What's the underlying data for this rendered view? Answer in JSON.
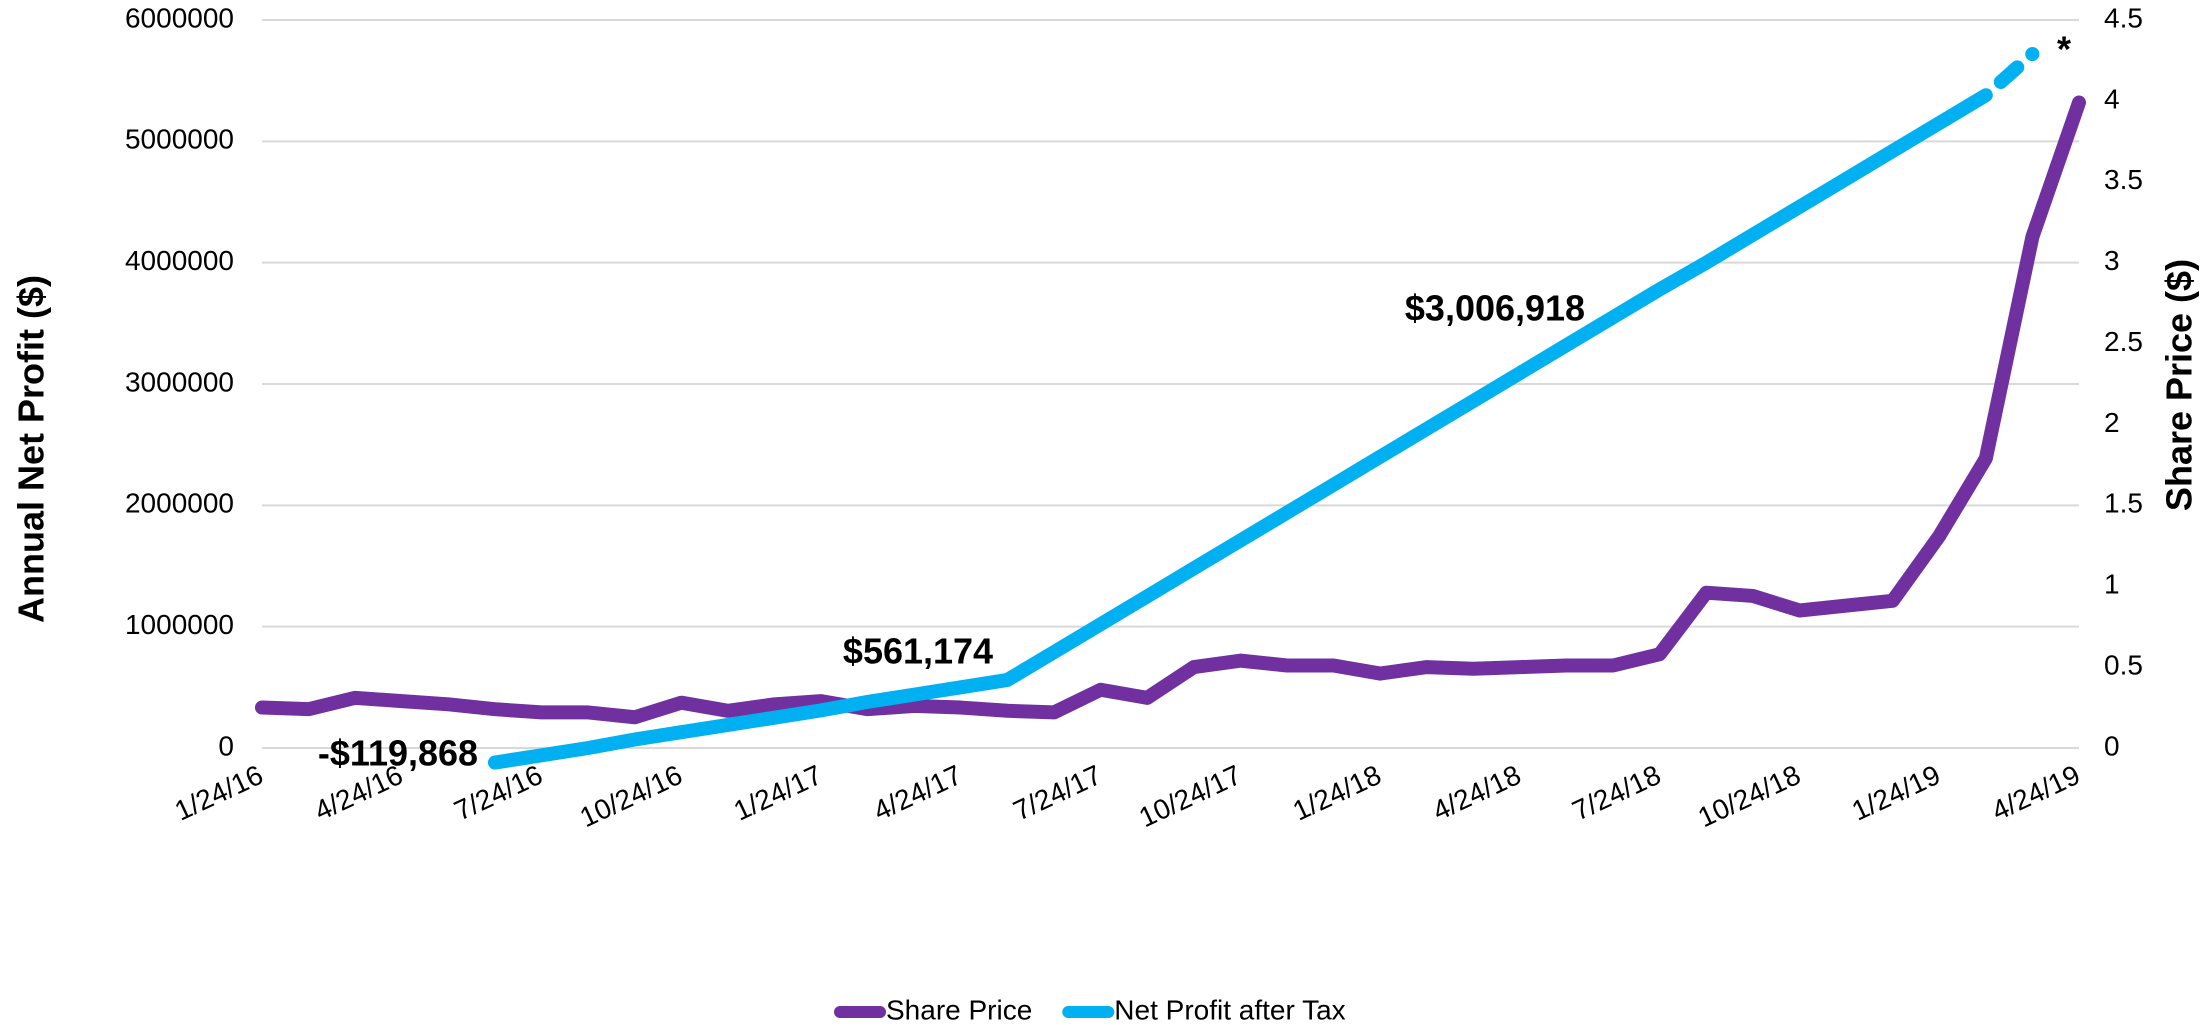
{
  "chart_data": {
    "type": "line",
    "y_axis_label": "Annual Net Profit ($)",
    "y2_axis_label": "Share Price ($)",
    "categories": [
      "1/24/16",
      null,
      null,
      "4/24/16",
      null,
      null,
      "7/24/16",
      null,
      null,
      "10/24/16",
      null,
      null,
      "1/24/17",
      null,
      null,
      "4/24/17",
      null,
      null,
      "7/24/17",
      null,
      null,
      "10/24/17",
      null,
      null,
      "1/24/18",
      null,
      null,
      "4/24/18",
      null,
      null,
      "7/24/18",
      null,
      null,
      "10/24/18",
      null,
      null,
      "1/24/19",
      null,
      null,
      "4/24/19"
    ],
    "ylim": [
      0,
      6000000
    ],
    "yticks": [
      0,
      1000000,
      2000000,
      3000000,
      4000000,
      5000000,
      6000000
    ],
    "y2lim": [
      0,
      4.5
    ],
    "y2ticks": [
      0,
      0.5,
      1,
      1.5,
      2,
      2.5,
      3,
      3.5,
      4,
      4.5
    ],
    "grid": true,
    "legend": "bottom",
    "series": [
      {
        "name": "Share Price",
        "color": "#7030a0",
        "axis": "y2",
        "values": [
          0.25,
          0.24,
          0.31,
          0.29,
          0.27,
          0.24,
          0.22,
          0.22,
          0.19,
          0.28,
          0.23,
          0.27,
          0.29,
          0.24,
          0.26,
          0.25,
          0.23,
          0.22,
          0.36,
          0.31,
          0.5,
          0.54,
          0.51,
          0.51,
          0.46,
          0.5,
          0.49,
          0.5,
          0.51,
          0.51,
          0.58,
          0.96,
          0.94,
          0.85,
          0.88,
          0.91,
          1.31,
          1.79,
          3.16,
          3.99
        ]
      },
      {
        "name": "Net Profit after Tax",
        "color": "#00b0f0",
        "dashed_last_segment": true,
        "values": [
          null,
          null,
          null,
          null,
          null,
          -119868,
          -60000,
          0,
          70000,
          130000,
          190000,
          250000,
          310000,
          380000,
          440000,
          500000,
          561174,
          790000,
          1020000,
          1250000,
          1480000,
          1710000,
          1940000,
          2170000,
          2400000,
          2630000,
          2860000,
          3090000,
          3320000,
          3550000,
          3780000,
          4000000,
          4230000,
          4460000,
          4690000,
          4920000,
          5150000,
          5380000,
          5720000,
          null
        ],
        "value_labels": [
          null,
          null,
          null,
          null,
          null,
          "-$119,868",
          null,
          null,
          null,
          null,
          null,
          null,
          null,
          null,
          null,
          null,
          "$561,174",
          null,
          null,
          null,
          null,
          null,
          null,
          null,
          null,
          null,
          null,
          null,
          null,
          null,
          null,
          null,
          null,
          null,
          null,
          null,
          null,
          null,
          null,
          null
        ]
      }
    ],
    "annotations": [
      "$3,006,918",
      "*"
    ]
  }
}
